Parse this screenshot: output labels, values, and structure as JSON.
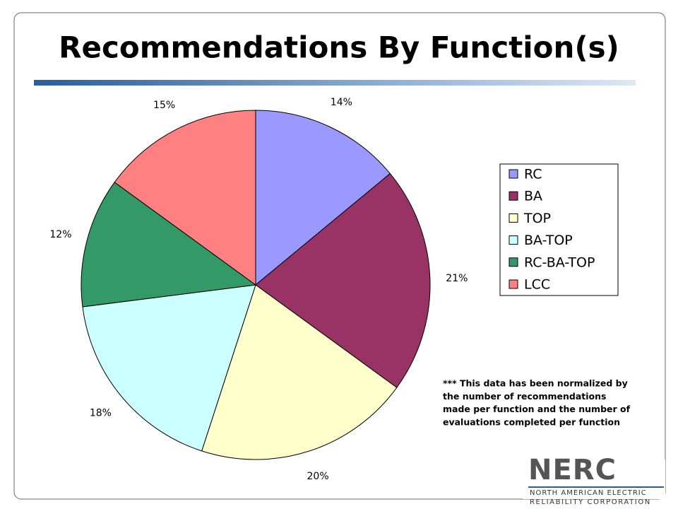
{
  "chart_data": {
    "type": "pie",
    "title": "Recommendations By Function(s)",
    "categories": [
      "RC",
      "BA",
      "TOP",
      "BA-TOP",
      "RC-BA-TOP",
      "LCC"
    ],
    "values": [
      14,
      21,
      20,
      18,
      12,
      15
    ],
    "value_labels": [
      "14%",
      "21%",
      "20%",
      "18%",
      "12%",
      "15%"
    ],
    "colors": [
      "#9999ff",
      "#993366",
      "#ffffcc",
      "#ccffff",
      "#339966",
      "#ff8080"
    ],
    "legend": "right",
    "note": [
      "***  This data has been normalized by",
      "the number of recommendations",
      "made per function and the number of",
      "evaluations completed per function"
    ]
  },
  "logo": {
    "name": "NERC",
    "lines": [
      "NORTH AMERICAN ELECTRIC",
      "RELIABILITY CORPORATION"
    ]
  }
}
